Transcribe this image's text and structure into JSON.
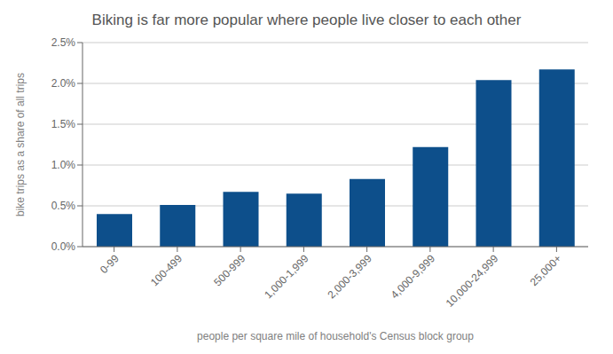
{
  "chart_data": {
    "type": "bar",
    "title": "Biking is far more popular where people live closer to each other",
    "xlabel": "people per square mile of household's Census block group",
    "ylabel": "bike trips as a share of all trips",
    "categories": [
      "0-99",
      "100-499",
      "500-999",
      "1,000-1,999",
      "2,000-3,999",
      "4,000-9,999",
      "10,000-24,999",
      "25,000+"
    ],
    "values": [
      0.004,
      0.0051,
      0.0067,
      0.0065,
      0.0083,
      0.0122,
      0.0204,
      0.0217
    ],
    "color": "#0d4f8b",
    "ylim": [
      0,
      0.025
    ],
    "yticks": [
      {
        "value": 0,
        "label": "0.0%"
      },
      {
        "value": 0.005,
        "label": "0.5%"
      },
      {
        "value": 0.01,
        "label": "1.0%"
      },
      {
        "value": 0.015,
        "label": "1.5%"
      },
      {
        "value": 0.02,
        "label": "2.0%"
      },
      {
        "value": 0.025,
        "label": "2.5%"
      }
    ],
    "grid": true
  }
}
